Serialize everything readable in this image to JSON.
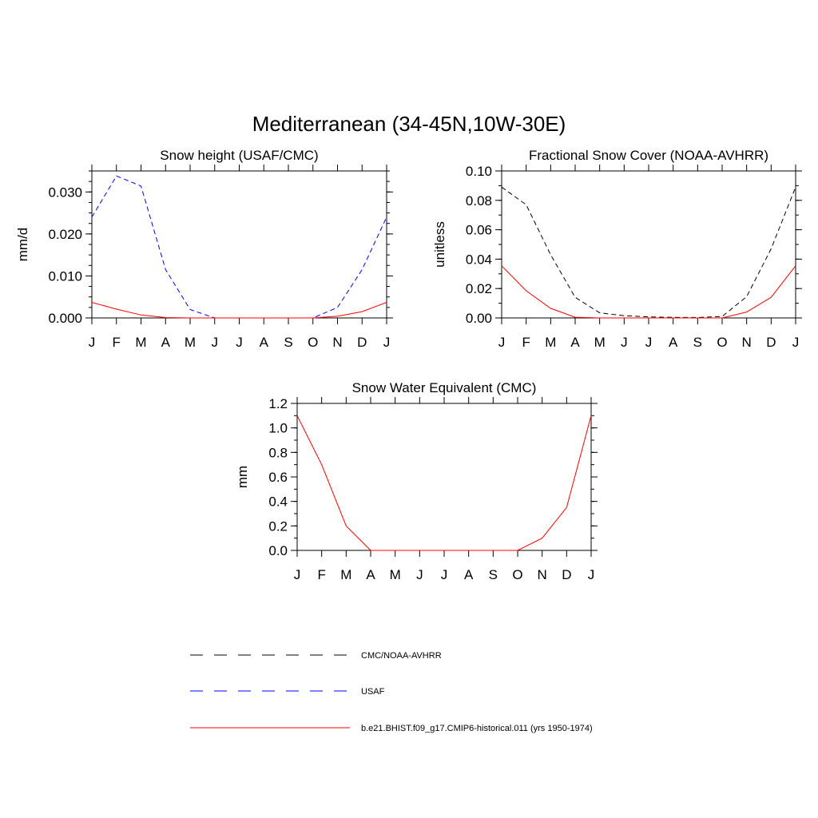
{
  "title": "Mediterranean (34-45N,10W-30E)",
  "months": [
    "J",
    "F",
    "M",
    "A",
    "M",
    "J",
    "J",
    "A",
    "S",
    "O",
    "N",
    "D",
    "J"
  ],
  "chart_data": [
    {
      "type": "line",
      "title": "Snow height (USAF/CMC)",
      "ylabel": "mm/d",
      "ylim": [
        0,
        0.035
      ],
      "yticks": [
        0,
        0.01,
        0.02,
        0.03
      ],
      "ytick_labels": [
        "0.000",
        "0.010",
        "0.020",
        "0.030"
      ],
      "yminor_step": 0.0025,
      "categories": [
        "J",
        "F",
        "M",
        "A",
        "M",
        "J",
        "J",
        "A",
        "S",
        "O",
        "N",
        "D",
        "J"
      ],
      "series": [
        {
          "name": "USAF",
          "style": "dashed",
          "color": "#0000ff",
          "values": [
            0.024,
            0.0338,
            0.0314,
            0.0115,
            0.002,
            0.0,
            0.0,
            0.0,
            0.0,
            0.0,
            0.0025,
            0.0115,
            0.024
          ]
        },
        {
          "name": "b.e21.BHIST.f09_g17.CMIP6-historical.011 (yrs 1950-1974)",
          "style": "solid",
          "color": "#ff0000",
          "values": [
            0.0037,
            0.0021,
            0.0007,
            0.0001,
            0.0,
            0.0,
            0.0,
            0.0,
            0.0,
            0.0,
            0.0004,
            0.0015,
            0.0037
          ]
        }
      ]
    },
    {
      "type": "line",
      "title": "Fractional Snow Cover (NOAA-AVHRR)",
      "ylabel": "unitless",
      "ylim": [
        0,
        0.1
      ],
      "yticks": [
        0,
        0.02,
        0.04,
        0.06,
        0.08,
        0.1
      ],
      "ytick_labels": [
        "0.00",
        "0.02",
        "0.04",
        "0.06",
        "0.08",
        "0.10"
      ],
      "yminor_step": 0.01,
      "categories": [
        "J",
        "F",
        "M",
        "A",
        "M",
        "J",
        "J",
        "A",
        "S",
        "O",
        "N",
        "D",
        "J"
      ],
      "series": [
        {
          "name": "CMC/NOAA-AVHRR",
          "style": "dashed",
          "color": "#000000",
          "values": [
            0.089,
            0.077,
            0.043,
            0.014,
            0.0035,
            0.0015,
            0.0007,
            0.0004,
            0.0003,
            0.001,
            0.0145,
            0.047,
            0.089
          ]
        },
        {
          "name": "b.e21.BHIST.f09_g17.CMIP6-historical.011 (yrs 1950-1974)",
          "style": "solid",
          "color": "#ff0000",
          "values": [
            0.0355,
            0.0185,
            0.0065,
            0.0005,
            0.0,
            0.0,
            0.0,
            0.0,
            0.0,
            0.0,
            0.004,
            0.014,
            0.0355
          ]
        }
      ]
    },
    {
      "type": "line",
      "title": "Snow Water Equivalent (CMC)",
      "ylabel": "mm",
      "ylim": [
        0,
        1.2
      ],
      "yticks": [
        0,
        0.2,
        0.4,
        0.6,
        0.8,
        1.0,
        1.2
      ],
      "ytick_labels": [
        "0.0",
        "0.2",
        "0.4",
        "0.6",
        "0.8",
        "1.0",
        "1.2"
      ],
      "yminor_step": 0.1,
      "categories": [
        "J",
        "F",
        "M",
        "A",
        "M",
        "J",
        "J",
        "A",
        "S",
        "O",
        "N",
        "D",
        "J"
      ],
      "series": [
        {
          "name": "CMC/NOAA-AVHRR",
          "style": "dashed",
          "color": "#000000",
          "values": [
            0,
            0,
            0,
            0,
            0,
            0,
            0,
            0,
            0,
            0,
            0,
            0,
            0
          ]
        },
        {
          "name": "b.e21.BHIST.f09_g17.CMIP6-historical.011 (yrs 1950-1974)",
          "style": "solid",
          "color": "#ff0000",
          "values": [
            1.1,
            0.7,
            0.2,
            0.0,
            0.0,
            0.0,
            0.0,
            0.0,
            0.0,
            0.0,
            0.1,
            0.35,
            1.1
          ]
        }
      ]
    }
  ],
  "legend": [
    {
      "label": "CMC/NOAA-AVHRR",
      "style": "dashed",
      "color": "#000000"
    },
    {
      "label": "USAF",
      "style": "dashed",
      "color": "#0000ff"
    },
    {
      "label": "b.e21.BHIST.f09_g17.CMIP6-historical.011 (yrs 1950-1974)",
      "style": "solid",
      "color": "#ff0000"
    }
  ]
}
